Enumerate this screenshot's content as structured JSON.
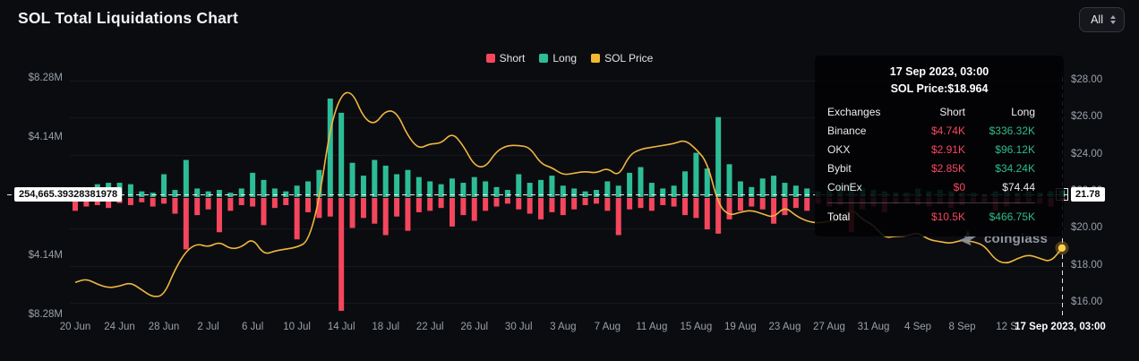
{
  "header": {
    "title": "SOL Total Liquidations Chart",
    "range_selected": "All"
  },
  "legend": {
    "items": [
      {
        "label": "Short",
        "color": "#f4465d"
      },
      {
        "label": "Long",
        "color": "#2dbd96"
      },
      {
        "label": "SOL Price",
        "color": "#f3ba2f"
      }
    ]
  },
  "colors": {
    "background": "#0b0c10",
    "short": "#f4465d",
    "long": "#2dbd96",
    "price_line": "#f0b63f",
    "price_dot": "#ffd04b",
    "axis_text": "#98a0a8",
    "crosshair": "#ffffff"
  },
  "axes": {
    "left_labels": [
      {
        "text": "$8.28M",
        "value": 8.28
      },
      {
        "text": "$4.14M",
        "value": 4.14
      },
      {
        "text": "$4.14M",
        "value": -4.14
      },
      {
        "text": "$8.28M",
        "value": -8.28
      }
    ],
    "right_labels": [
      {
        "text": "$28.00",
        "value": 28
      },
      {
        "text": "$26.00",
        "value": 26
      },
      {
        "text": "$24.00",
        "value": 24
      },
      {
        "text": "$22.00",
        "value": 22
      },
      {
        "text": "$20.00",
        "value": 20
      },
      {
        "text": "$18.00",
        "value": 18
      },
      {
        "text": "$16.00",
        "value": 16
      }
    ],
    "x_ticks": [
      {
        "text": "20 Jun",
        "i": 0
      },
      {
        "text": "24 Jun",
        "i": 4
      },
      {
        "text": "28 Jun",
        "i": 8
      },
      {
        "text": "2 Jul",
        "i": 12
      },
      {
        "text": "6 Jul",
        "i": 16
      },
      {
        "text": "10 Jul",
        "i": 20
      },
      {
        "text": "14 Jul",
        "i": 24
      },
      {
        "text": "18 Jul",
        "i": 28
      },
      {
        "text": "22 Jul",
        "i": 32
      },
      {
        "text": "26 Jul",
        "i": 36
      },
      {
        "text": "30 Jul",
        "i": 40
      },
      {
        "text": "3 Aug",
        "i": 44
      },
      {
        "text": "7 Aug",
        "i": 48
      },
      {
        "text": "11 Aug",
        "i": 52
      },
      {
        "text": "15 Aug",
        "i": 56
      },
      {
        "text": "19 Aug",
        "i": 60
      },
      {
        "text": "23 Aug",
        "i": 64
      },
      {
        "text": "27 Aug",
        "i": 68
      },
      {
        "text": "31 Aug",
        "i": 72
      },
      {
        "text": "4 Sep",
        "i": 76
      },
      {
        "text": "8 Sep",
        "i": 80
      },
      {
        "text": "12 S",
        "i": 84
      }
    ],
    "x_highlight": "17 Sep 2023, 03:00"
  },
  "crosshair": {
    "left_value": "254,665.39328381978",
    "right_value": "21.78"
  },
  "tooltip": {
    "title": "17 Sep 2023, 03:00",
    "subtitle": "SOL Price:$18.964",
    "columns": [
      "Exchanges",
      "Short",
      "Long"
    ],
    "rows": [
      {
        "cells": [
          "Binance",
          "$4.74K",
          "$336.32K"
        ],
        "colors": [
          "#e9eaec",
          "#f6465d",
          "#2ebd85"
        ]
      },
      {
        "cells": [
          "OKX",
          "$2.91K",
          "$96.12K"
        ],
        "colors": [
          "#e9eaec",
          "#f6465d",
          "#2ebd85"
        ]
      },
      {
        "cells": [
          "Bybit",
          "$2.85K",
          "$34.24K"
        ],
        "colors": [
          "#e9eaec",
          "#f6465d",
          "#2ebd85"
        ]
      },
      {
        "cells": [
          "CoinEx",
          "$0",
          "$74.44"
        ],
        "colors": [
          "#e9eaec",
          "#f6465d",
          "#e9eaec"
        ]
      }
    ],
    "total_row": {
      "cells": [
        "Total",
        "$10.5K",
        "$466.75K"
      ],
      "colors": [
        "#ffffff",
        "#f6465d",
        "#2ebd85"
      ]
    }
  },
  "watermark": {
    "text": "coinglass"
  },
  "chart_data": {
    "type": "bar",
    "title": "SOL Total Liquidations Chart",
    "x": [
      "20 Jun",
      "21 Jun",
      "22 Jun",
      "23 Jun",
      "24 Jun",
      "25 Jun",
      "26 Jun",
      "27 Jun",
      "28 Jun",
      "29 Jun",
      "30 Jun",
      "1 Jul",
      "2 Jul",
      "3 Jul",
      "4 Jul",
      "5 Jul",
      "6 Jul",
      "7 Jul",
      "8 Jul",
      "9 Jul",
      "10 Jul",
      "11 Jul",
      "12 Jul",
      "13 Jul",
      "14 Jul",
      "15 Jul",
      "16 Jul",
      "17 Jul",
      "18 Jul",
      "19 Jul",
      "20 Jul",
      "21 Jul",
      "22 Jul",
      "23 Jul",
      "24 Jul",
      "25 Jul",
      "26 Jul",
      "27 Jul",
      "28 Jul",
      "29 Jul",
      "30 Jul",
      "31 Jul",
      "1 Aug",
      "2 Aug",
      "3 Aug",
      "4 Aug",
      "5 Aug",
      "6 Aug",
      "7 Aug",
      "8 Aug",
      "9 Aug",
      "10 Aug",
      "11 Aug",
      "12 Aug",
      "13 Aug",
      "14 Aug",
      "15 Aug",
      "16 Aug",
      "17 Aug",
      "18 Aug",
      "19 Aug",
      "20 Aug",
      "21 Aug",
      "22 Aug",
      "23 Aug",
      "24 Aug",
      "25 Aug",
      "26 Aug",
      "27 Aug",
      "28 Aug",
      "29 Aug",
      "30 Aug",
      "31 Aug",
      "1 Sep",
      "2 Sep",
      "3 Sep",
      "4 Sep",
      "5 Sep",
      "6 Sep",
      "7 Sep",
      "8 Sep",
      "9 Sep",
      "10 Sep",
      "11 Sep",
      "12 Sep",
      "13 Sep",
      "14 Sep",
      "15 Sep",
      "16 Sep",
      "17 Sep"
    ],
    "series": [
      {
        "name": "Short",
        "type": "bar",
        "direction": "down",
        "axis": "left",
        "unit": "$M",
        "values": [
          0.9,
          0.6,
          0.5,
          0.7,
          0.35,
          0.5,
          0.3,
          0.6,
          0.4,
          1.1,
          3.6,
          1.2,
          0.8,
          2.4,
          0.9,
          0.5,
          0.6,
          1.9,
          0.7,
          0.5,
          2.9,
          1.0,
          1.4,
          1.3,
          7.9,
          2.1,
          1.4,
          1.8,
          2.6,
          1.3,
          2.3,
          1.0,
          0.9,
          0.7,
          2.0,
          1.2,
          1.6,
          0.9,
          0.6,
          0.4,
          0.8,
          1.1,
          1.5,
          1.0,
          1.2,
          0.8,
          0.5,
          0.4,
          0.9,
          2.6,
          0.8,
          0.7,
          0.9,
          0.5,
          0.6,
          1.2,
          1.4,
          2.2,
          2.5,
          1.5,
          0.9,
          0.6,
          0.8,
          1.8,
          1.2,
          0.7,
          0.9,
          0.4,
          0.6,
          0.5,
          2.4,
          0.8,
          0.6,
          1.0,
          0.4,
          0.3,
          0.5,
          0.6,
          0.4,
          0.7,
          0.5,
          0.3,
          0.3,
          0.9,
          0.6,
          0.4,
          0.3,
          0.4,
          0.6,
          0.01
        ]
      },
      {
        "name": "Long",
        "type": "bar",
        "direction": "up",
        "axis": "left",
        "unit": "$M",
        "values": [
          0.3,
          0.25,
          0.9,
          1.0,
          1.0,
          0.9,
          0.4,
          0.3,
          1.6,
          0.5,
          2.6,
          0.6,
          0.4,
          0.5,
          0.3,
          0.6,
          1.7,
          1.2,
          0.6,
          0.4,
          0.8,
          1.1,
          1.9,
          6.9,
          5.9,
          2.4,
          1.5,
          2.6,
          2.2,
          1.6,
          1.9,
          1.4,
          1.1,
          0.9,
          1.3,
          1.0,
          1.4,
          1.1,
          0.7,
          0.5,
          1.6,
          1.0,
          1.2,
          1.5,
          0.8,
          0.6,
          0.4,
          0.5,
          1.1,
          0.8,
          1.7,
          2.1,
          1.0,
          0.6,
          0.8,
          1.8,
          3.1,
          2.0,
          5.6,
          2.3,
          1.1,
          0.7,
          1.3,
          1.5,
          1.0,
          0.8,
          0.6,
          0.4,
          0.5,
          0.7,
          0.9,
          0.6,
          0.5,
          0.4,
          0.3,
          0.3,
          0.6,
          0.4,
          0.5,
          0.4,
          0.3,
          0.3,
          0.2,
          0.4,
          0.5,
          0.3,
          0.4,
          0.3,
          0.4,
          0.47
        ]
      },
      {
        "name": "SOL Price",
        "type": "line",
        "axis": "right",
        "unit": "USD",
        "values": [
          17.1,
          17.3,
          17.0,
          16.8,
          16.9,
          17.1,
          16.7,
          16.3,
          16.4,
          17.8,
          18.8,
          19.2,
          19.0,
          19.3,
          18.9,
          19.0,
          19.5,
          18.6,
          18.8,
          18.9,
          19.0,
          19.3,
          21.5,
          25.5,
          27.3,
          27.4,
          26.0,
          25.6,
          26.4,
          26.3,
          25.0,
          24.3,
          24.6,
          24.6,
          25.2,
          24.5,
          23.4,
          23.3,
          24.2,
          24.5,
          24.5,
          24.4,
          23.5,
          23.3,
          22.9,
          23.0,
          23.1,
          23.0,
          23.3,
          22.8,
          24.0,
          24.3,
          24.4,
          24.5,
          24.6,
          24.8,
          24.3,
          23.6,
          21.3,
          20.7,
          20.9,
          21.0,
          20.8,
          20.6,
          21.2,
          20.7,
          20.4,
          20.3,
          20.4,
          20.5,
          21.1,
          20.5,
          20.2,
          19.5,
          19.6,
          19.6,
          19.8,
          19.4,
          19.3,
          19.2,
          19.4,
          19.3,
          19.1,
          18.3,
          18.1,
          18.4,
          18.6,
          18.4,
          18.2,
          18.96
        ]
      }
    ],
    "left_axis": {
      "range_m": [
        -8.28,
        8.28
      ],
      "tick_step_m": 4.14
    },
    "right_axis": {
      "range": [
        16,
        28
      ],
      "ticks": [
        16,
        18,
        20,
        22,
        24,
        26,
        28
      ]
    },
    "legend_position": "top",
    "grid": "off"
  }
}
